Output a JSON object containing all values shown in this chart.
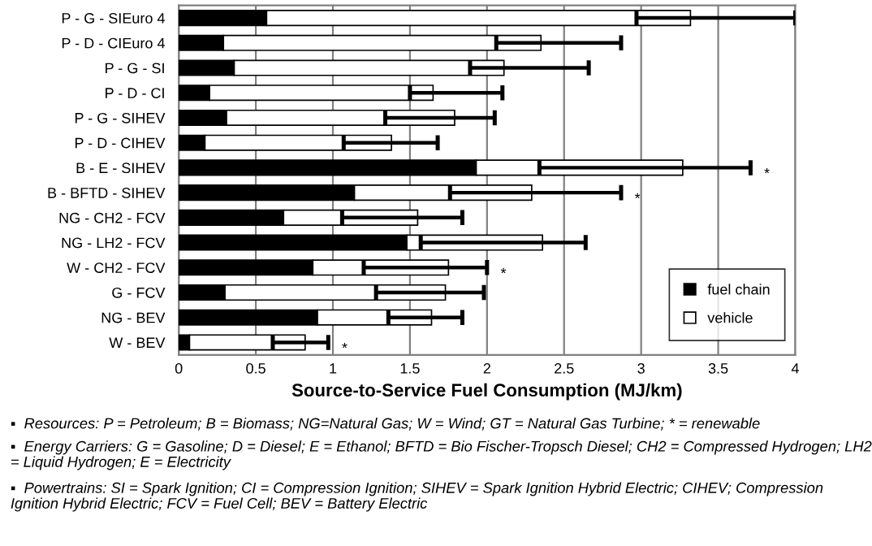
{
  "chart_data": {
    "type": "bar",
    "orientation": "horizontal",
    "stacked": true,
    "categories": [
      "P - G - SIEuro 4",
      "P - D - CIEuro 4",
      "P - G - SI",
      "P - D - CI",
      "P - G - SIHEV",
      "P - D - CIHEV",
      "B - E - SIHEV",
      "B - BFTD - SIHEV",
      "NG - CH2 - FCV",
      "NG - LH2 - FCV",
      "W - CH2 - FCV",
      "G - FCV",
      "NG - BEV",
      "W - BEV"
    ],
    "series": [
      {
        "name": "fuel chain",
        "color": "#000000",
        "values": [
          0.57,
          0.29,
          0.36,
          0.2,
          0.31,
          0.17,
          1.93,
          1.14,
          0.68,
          1.48,
          0.87,
          0.3,
          0.9,
          0.07
        ]
      },
      {
        "name": "vehicle",
        "color": "#ffffff",
        "values": [
          2.75,
          2.06,
          1.75,
          1.45,
          1.48,
          1.21,
          1.34,
          1.15,
          0.87,
          0.88,
          0.88,
          1.43,
          0.74,
          0.75
        ],
        "errors": [
          [
            2.97,
            4.0
          ],
          [
            2.06,
            2.87
          ],
          [
            1.89,
            2.66
          ],
          [
            1.5,
            2.1
          ],
          [
            1.34,
            2.05
          ],
          [
            1.07,
            1.68
          ],
          [
            2.34,
            3.71
          ],
          [
            1.76,
            2.87
          ],
          [
            1.06,
            1.84
          ],
          [
            1.57,
            2.64
          ],
          [
            1.2,
            2.0
          ],
          [
            1.28,
            1.98
          ],
          [
            1.36,
            1.84
          ],
          [
            0.61,
            0.97
          ]
        ]
      }
    ],
    "xlabel": "Source-to-Service Fuel Consumption (MJ/km)",
    "xlim": [
      0,
      4
    ],
    "xticks": [
      0,
      0.5,
      1,
      1.5,
      2,
      2.5,
      3,
      3.5,
      4
    ],
    "grid": "x",
    "legend": "bottom right",
    "annotations": [
      {
        "text": "*",
        "x": 3.71,
        "y": "B - E - SIHEV"
      },
      {
        "text": "*",
        "x": 2.87,
        "y": "B - BFTD - SIHEV"
      },
      {
        "text": "*",
        "x": 2.0,
        "y": "W - CH2 - FCV"
      },
      {
        "text": "*",
        "x": 0.97,
        "y": "W - BEV"
      },
      "▪  Resources: P = Petroleum; B = Biomass; NG=Natural Gas; W = Wind; GT = Natural Gas Turbine; * = renewable",
      "▪  Energy Carriers: G = Gasoline; D = Diesel; E = Ethanol; BFTD = Bio Fischer-Tropsch Diesel; CH2 = Compressed Hydrogen; LH2 = Liquid Hydrogen; E = Electricity",
      "▪  Powertrains: SI = Spark Ignition; CI = Compression Ignition; SIHEV = Spark Ignition Hybrid Electric; CIHEV; Compression Ignition Hybrid Electric; FCV = Fuel Cell; BEV = Battery Electric"
    ]
  }
}
